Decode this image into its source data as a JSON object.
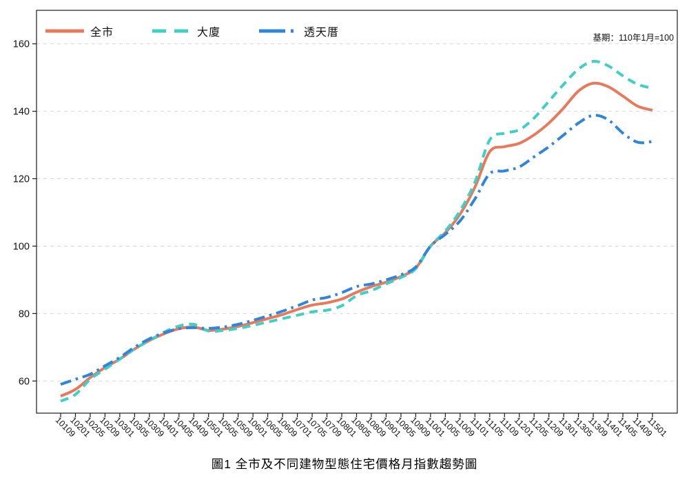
{
  "chart_data": {
    "type": "line",
    "title": "圖1 全市及不同建物型態住宅價格月指數趨勢圖",
    "note": "基期：110年1月=100",
    "categories": [
      "10109",
      "10201",
      "10205",
      "10209",
      "10301",
      "10305",
      "10309",
      "10401",
      "10405",
      "10409",
      "10501",
      "10505",
      "10509",
      "10601",
      "10605",
      "10609",
      "10701",
      "10705",
      "10709",
      "10801",
      "10805",
      "10809",
      "10901",
      "10905",
      "10909",
      "11001",
      "11005",
      "11009",
      "11101",
      "11105",
      "11109",
      "11201",
      "11205",
      "11209",
      "11301",
      "11305",
      "11309",
      "11401",
      "11405",
      "11409",
      "11501"
    ],
    "series": [
      {
        "name": "全市",
        "color": "#E8795B",
        "style": "solid",
        "values": [
          55.5,
          57.5,
          61,
          64,
          66.5,
          69.5,
          72,
          74,
          75.5,
          76,
          75,
          75.4,
          76.2,
          77.3,
          78.5,
          79.7,
          81.2,
          82.5,
          83.2,
          84.3,
          86.3,
          88,
          89.3,
          91,
          93.5,
          100,
          104,
          109.5,
          117.5,
          128,
          129.5,
          130.5,
          133,
          136.5,
          141,
          146,
          148.3,
          147.3,
          144.5,
          141.5,
          140.3
        ]
      },
      {
        "name": "大廈",
        "color": "#3ED0C4",
        "style": "dashed",
        "values": [
          54,
          56,
          60.5,
          63.5,
          66.5,
          69.5,
          72,
          74.5,
          76.3,
          76.8,
          74.8,
          75,
          75.6,
          76.5,
          77.5,
          78.5,
          79.5,
          80.5,
          81,
          82.3,
          85.3,
          86.8,
          88.8,
          90.7,
          93.3,
          100,
          104.5,
          110.5,
          119,
          131.5,
          133.5,
          134.5,
          138,
          143,
          148,
          152.5,
          154.8,
          153.5,
          150.5,
          148,
          146.8
        ]
      },
      {
        "name": "透天厝",
        "color": "#2E85DC",
        "style": "dashdot",
        "values": [
          59,
          60.5,
          62,
          64.5,
          67,
          70,
          72.5,
          74.3,
          75.5,
          75.8,
          75.6,
          76,
          76.8,
          78,
          79.3,
          80.7,
          82.3,
          84,
          84.8,
          86.2,
          88,
          88.8,
          90,
          91.5,
          93.8,
          100,
          103.5,
          107.5,
          114,
          121.5,
          122.3,
          123.5,
          126.5,
          129.5,
          133,
          136.5,
          138.8,
          137.5,
          133.5,
          130.8,
          131
        ]
      }
    ],
    "yticks": [
      60,
      80,
      100,
      120,
      140,
      160
    ],
    "ylim": [
      50,
      167
    ],
    "xlabel": "",
    "ylabel": "",
    "grid": "horizontal-dashed",
    "legend_position": "top-left-inside"
  }
}
